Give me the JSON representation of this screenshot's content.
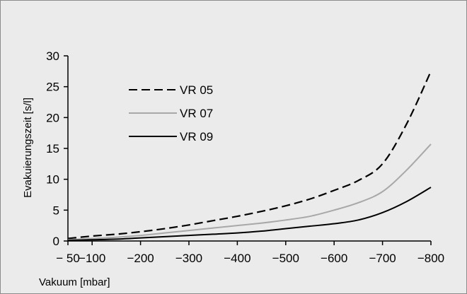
{
  "chart_data": {
    "type": "line",
    "title": "",
    "xlabel": "Vakuum [mbar]",
    "ylabel": "Evakuierungszeit [s/l]",
    "x": [
      -50,
      -100,
      -150,
      -200,
      -250,
      -300,
      -350,
      -400,
      -450,
      -500,
      -550,
      -600,
      -650,
      -700,
      -750,
      -800
    ],
    "x_tick_values": [
      -50,
      -100,
      -200,
      -300,
      -400,
      -500,
      -600,
      -700,
      -800
    ],
    "x_tick_labels": [
      "− 50",
      "−100",
      "−200",
      "−300",
      "−400",
      "−500",
      "−600",
      "−700",
      "−800"
    ],
    "xlim": [
      -50,
      -800
    ],
    "y_ticks": [
      0,
      5,
      10,
      15,
      20,
      25,
      30
    ],
    "ylim": [
      0,
      30
    ],
    "grid": false,
    "legend_position": "top-left",
    "series": [
      {
        "name": "VR 05",
        "color": "#000000",
        "dash": "dashed",
        "values": [
          0.4,
          0.8,
          1.1,
          1.5,
          2.0,
          2.6,
          3.3,
          4.0,
          4.8,
          5.7,
          6.8,
          8.2,
          9.8,
          12.5,
          19.0,
          27.5
        ]
      },
      {
        "name": "VR 07",
        "color": "#a8a8a8",
        "dash": "solid",
        "values": [
          0.2,
          0.4,
          0.6,
          0.9,
          1.3,
          1.7,
          2.1,
          2.5,
          2.9,
          3.4,
          4.0,
          5.0,
          6.2,
          8.0,
          11.5,
          15.7
        ]
      },
      {
        "name": "VR 09",
        "color": "#000000",
        "dash": "solid",
        "values": [
          0.1,
          0.2,
          0.3,
          0.5,
          0.7,
          0.9,
          1.1,
          1.3,
          1.6,
          2.0,
          2.4,
          2.8,
          3.4,
          4.6,
          6.4,
          8.7
        ]
      }
    ]
  }
}
